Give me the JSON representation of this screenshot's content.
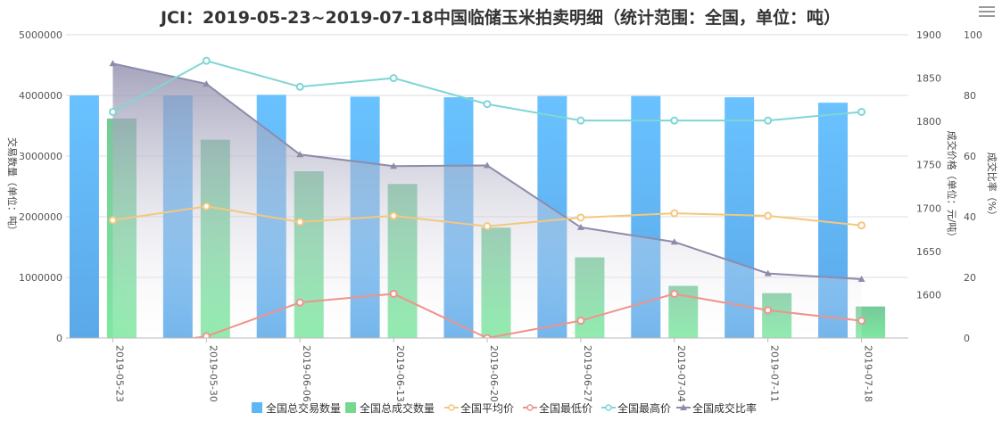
{
  "chart_data": {
    "type": "bar",
    "title": "JCI：2019-05-23~2019-07-18中国临储玉米拍卖明细（统计范围：全国，单位：吨）",
    "categories": [
      "2019-05-23",
      "2019-05-30",
      "2019-06-06",
      "2019-06-13",
      "2019-06-20",
      "2019-06-27",
      "2019-07-04",
      "2019-07-11",
      "2019-07-18"
    ],
    "axes": {
      "y_left": {
        "label": "交易数量（单位：吨）",
        "range": [
          0,
          5000000
        ],
        "ticks": [
          "0",
          "1000000",
          "2000000",
          "3000000",
          "4000000",
          "5000000"
        ]
      },
      "y_price": {
        "label": "成交价格（单位：元/吨）",
        "range": [
          1550,
          1900
        ],
        "ticks": [
          "1600",
          "1650",
          "1700",
          "1750",
          "1800",
          "1850",
          "1900"
        ]
      },
      "y_ratio": {
        "label": "成交比率（%）",
        "range": [
          0,
          100
        ],
        "ticks": [
          "0",
          "20",
          "40",
          "60",
          "80",
          "100"
        ]
      }
    },
    "grid": true,
    "legend_position": "bottom",
    "series": [
      {
        "name": "全国总交易数量",
        "type": "bar",
        "axis": "y_left",
        "color": "#5cb8f5",
        "values": [
          4000000,
          4000000,
          4010000,
          3980000,
          3970000,
          3990000,
          3990000,
          3970000,
          3880000
        ]
      },
      {
        "name": "全国总成交数量",
        "type": "bar",
        "axis": "y_left",
        "color": "#74d88e",
        "values": [
          3620000,
          3270000,
          2750000,
          2540000,
          1820000,
          1330000,
          860000,
          740000,
          520000
        ]
      },
      {
        "name": "全国平均价",
        "type": "line",
        "axis": "y_price",
        "color": "#f4c77f",
        "values": [
          1686,
          1702,
          1684,
          1691,
          1679,
          1689,
          1694,
          1691,
          1680
        ]
      },
      {
        "name": "全国最低价",
        "type": "line",
        "axis": "y_price",
        "color": "#f0938a",
        "values": [
          1538,
          1552,
          1591,
          1601,
          1550,
          1570,
          1601,
          1582,
          1570
        ]
      },
      {
        "name": "全国最高价",
        "type": "line",
        "axis": "y_price",
        "color": "#7fd6d4",
        "values": [
          1811,
          1870,
          1840,
          1850,
          1820,
          1801,
          1801,
          1801,
          1811
        ]
      },
      {
        "name": "全国成交比率",
        "type": "area",
        "axis": "y_ratio",
        "color": "#8d8cab",
        "values": [
          90.5,
          83.8,
          60.5,
          56.7,
          56.9,
          36.5,
          31.7,
          21.3,
          19.4
        ]
      }
    ]
  }
}
